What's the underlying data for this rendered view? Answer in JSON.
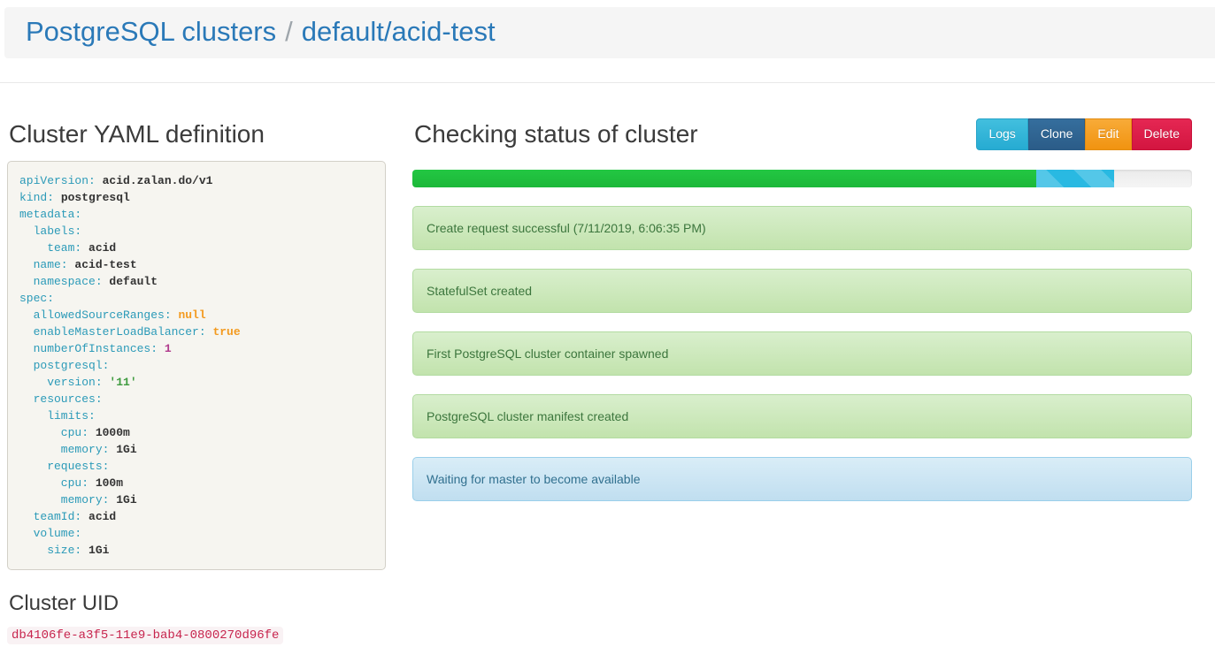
{
  "breadcrumb": {
    "root": "PostgreSQL clusters",
    "separator": "/",
    "current": "default/acid-test"
  },
  "left": {
    "yaml_title": "Cluster YAML definition",
    "uid_title": "Cluster UID",
    "uid_value": "db4106fe-a3f5-11e9-bab4-0800270d96fe",
    "yaml_lines": [
      {
        "indent": 0,
        "key": "apiVersion",
        "value": "acid.zalan.do/v1",
        "vtype": "plain"
      },
      {
        "indent": 0,
        "key": "kind",
        "value": "postgresql",
        "vtype": "plain"
      },
      {
        "indent": 0,
        "key": "metadata",
        "value": "",
        "vtype": "plain"
      },
      {
        "indent": 1,
        "key": "labels",
        "value": "",
        "vtype": "plain"
      },
      {
        "indent": 2,
        "key": "team",
        "value": "acid",
        "vtype": "plain"
      },
      {
        "indent": 1,
        "key": "name",
        "value": "acid-test",
        "vtype": "plain"
      },
      {
        "indent": 1,
        "key": "namespace",
        "value": "default",
        "vtype": "plain"
      },
      {
        "indent": 0,
        "key": "spec",
        "value": "",
        "vtype": "plain"
      },
      {
        "indent": 1,
        "key": "allowedSourceRanges",
        "value": "null",
        "vtype": "literal"
      },
      {
        "indent": 1,
        "key": "enableMasterLoadBalancer",
        "value": "true",
        "vtype": "literal"
      },
      {
        "indent": 1,
        "key": "numberOfInstances",
        "value": "1",
        "vtype": "number"
      },
      {
        "indent": 1,
        "key": "postgresql",
        "value": "",
        "vtype": "plain"
      },
      {
        "indent": 2,
        "key": "version",
        "value": "'11'",
        "vtype": "string"
      },
      {
        "indent": 1,
        "key": "resources",
        "value": "",
        "vtype": "plain"
      },
      {
        "indent": 2,
        "key": "limits",
        "value": "",
        "vtype": "plain"
      },
      {
        "indent": 3,
        "key": "cpu",
        "value": "1000m",
        "vtype": "plain"
      },
      {
        "indent": 3,
        "key": "memory",
        "value": "1Gi",
        "vtype": "plain"
      },
      {
        "indent": 2,
        "key": "requests",
        "value": "",
        "vtype": "plain"
      },
      {
        "indent": 3,
        "key": "cpu",
        "value": "100m",
        "vtype": "plain"
      },
      {
        "indent": 3,
        "key": "memory",
        "value": "1Gi",
        "vtype": "plain"
      },
      {
        "indent": 1,
        "key": "teamId",
        "value": "acid",
        "vtype": "plain"
      },
      {
        "indent": 1,
        "key": "volume",
        "value": "",
        "vtype": "plain"
      },
      {
        "indent": 2,
        "key": "size",
        "value": "1Gi",
        "vtype": "plain"
      }
    ]
  },
  "status": {
    "title": "Checking status of cluster",
    "buttons": [
      {
        "label": "Logs",
        "kind": "info"
      },
      {
        "label": "Clone",
        "kind": "primary"
      },
      {
        "label": "Edit",
        "kind": "warning"
      },
      {
        "label": "Delete",
        "kind": "danger"
      }
    ],
    "progress": {
      "segments": [
        {
          "width_pct": 80,
          "kind": "success"
        },
        {
          "width_pct": 10,
          "kind": "info-striped"
        }
      ]
    },
    "alerts": [
      {
        "text": "Create request successful (7/11/2019, 6:06:35 PM)",
        "type": "success"
      },
      {
        "text": "StatefulSet created",
        "type": "success"
      },
      {
        "text": "First PostgreSQL cluster container spawned",
        "type": "success"
      },
      {
        "text": "PostgreSQL cluster manifest created",
        "type": "success"
      },
      {
        "text": "Waiting for master to become available",
        "type": "info"
      }
    ]
  },
  "colors": {
    "breadcrumb_link": "#2a79b8",
    "yaml_key": "#2b9ab8",
    "yaml_literal": "#f39a1f",
    "yaml_number": "#b03a8c",
    "yaml_string": "#3f9b3f",
    "uid_text": "#c7254e",
    "uid_background": "#f9f2f4",
    "progress_green": "#20c03e",
    "progress_cyan": "#29b9e2",
    "alert_success_text": "#3c763d",
    "alert_info_text": "#31708f",
    "button_logs": "#34b5d8",
    "button_clone": "#316597",
    "button_edit": "#f49f24",
    "button_delete": "#dc1b47"
  }
}
